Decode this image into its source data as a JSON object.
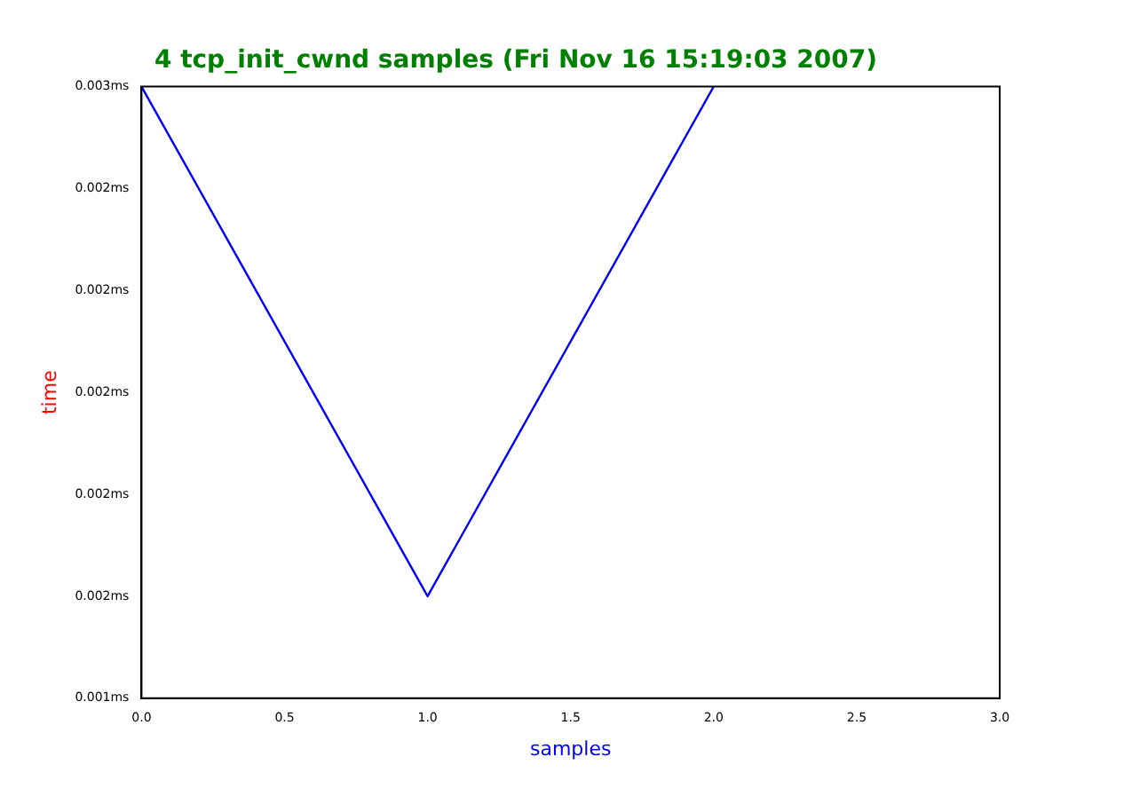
{
  "chart_data": {
    "type": "line",
    "title": "4 tcp_init_cwnd samples (Fri Nov 16 15:19:03 2007)",
    "xlabel": "samples",
    "ylabel": "time",
    "x": [
      0,
      1,
      2
    ],
    "series": [
      {
        "color": "#0000ff",
        "values": [
          0.0026,
          0.0016,
          0.0026
        ]
      }
    ],
    "xlim": [
      0,
      3
    ],
    "xticks": [
      {
        "value": 0,
        "label": "0.0"
      },
      {
        "value": 0.5,
        "label": "0.5"
      },
      {
        "value": 1,
        "label": "1.0"
      },
      {
        "value": 1.5,
        "label": "1.5"
      },
      {
        "value": 2,
        "label": "2.0"
      },
      {
        "value": 2.5,
        "label": "2.5"
      },
      {
        "value": 3,
        "label": "3.0"
      }
    ],
    "ylim": [
      0.0014,
      0.0026
    ],
    "yticks": [
      {
        "value": 0.0014,
        "label": "0.001ms"
      },
      {
        "value": 0.0016,
        "label": "0.002ms"
      },
      {
        "value": 0.0018,
        "label": "0.002ms"
      },
      {
        "value": 0.002,
        "label": "0.002ms"
      },
      {
        "value": 0.0022,
        "label": "0.002ms"
      },
      {
        "value": 0.0024,
        "label": "0.002ms"
      },
      {
        "value": 0.0026,
        "label": "0.003ms"
      }
    ],
    "grid": false,
    "legend": false,
    "marker": "none",
    "line_style": "solid"
  }
}
